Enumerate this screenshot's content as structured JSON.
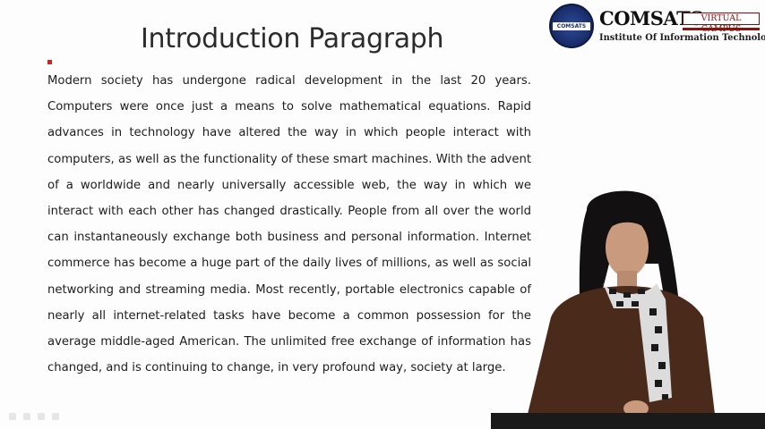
{
  "slide": {
    "title": "Introduction Paragraph",
    "paragraph": "Modern society has undergone radical development in the last 20 years. Computers were once just a means to solve mathematical equations. Rapid advances in technology have altered the way in which people interact with computers, as well as the functionality of these smart machines. With the advent of a worldwide and nearly universally accessible web, the way in which we interact with each other has changed drastically. People from all over the world can instantaneously exchange both business and personal information. Internet commerce has become a huge part of the daily lives of millions, as well as social networking and streaming media. Most recently, portable electronics capable of nearly all internet-related tasks have become a common possession for the average middle-aged American. The unlimited free exchange of information has changed, and is continuing to change, in very profound way, society at large.",
    "bullet_color": "#d62020"
  },
  "logo": {
    "seal_text": "COMSATS",
    "brand": "COMSATS",
    "tagline": "VIRTUAL CAMPUS",
    "institute": "Institute Of Information Technology"
  }
}
